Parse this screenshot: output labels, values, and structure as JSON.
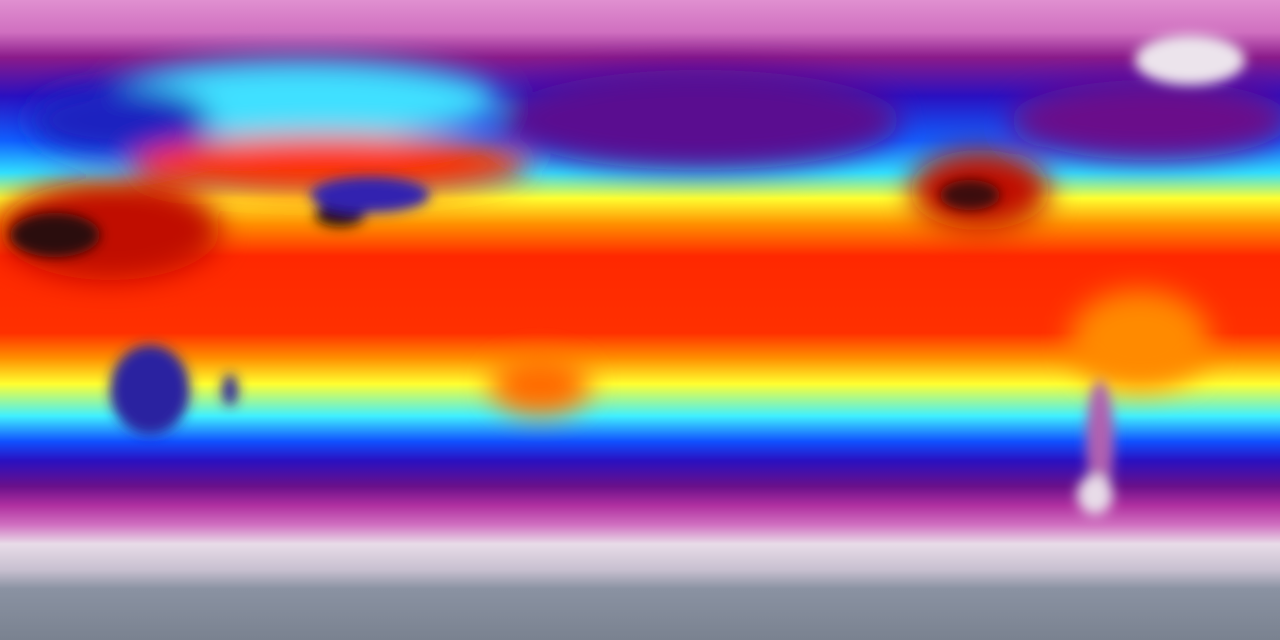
{
  "map": {
    "projection": "equirectangular",
    "coverage": "global",
    "colormap": [
      "#8890a0",
      "#e8dce8",
      "#d070c0",
      "#8a1a8a",
      "#2a10c0",
      "#1040ff",
      "#30e0ff",
      "#ffff30",
      "#ffa000",
      "#ff2800",
      "#c00000",
      "#301010"
    ],
    "features": [
      {
        "name": "sahara",
        "color": "#2a1010"
      },
      {
        "name": "greenland",
        "color": "#ece4ec"
      },
      {
        "name": "southern-africa",
        "color": "#2a20a0"
      },
      {
        "name": "australia",
        "color": "#ff6a00"
      },
      {
        "name": "south-america",
        "color": "#ff8a00"
      },
      {
        "name": "tibetan-plateau",
        "color": "#3020b0"
      },
      {
        "name": "north-pacific",
        "color": "#5a1090"
      },
      {
        "name": "north-america",
        "color": "#c01000"
      },
      {
        "name": "antarctica",
        "color": "#8a92a2"
      }
    ]
  }
}
